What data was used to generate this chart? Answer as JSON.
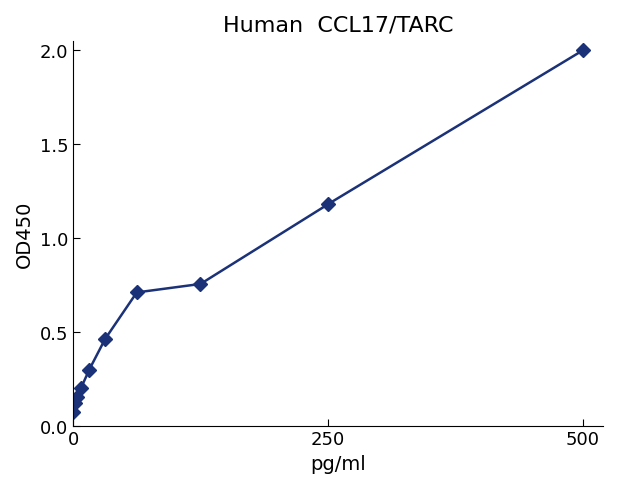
{
  "title": "Human  CCL17/TARC",
  "xlabel": "pg/ml",
  "ylabel": "OD450",
  "color": "#1c3278",
  "x_data": [
    0,
    1.95,
    3.9,
    7.8,
    15.6,
    31.25,
    62.5,
    125,
    250,
    500
  ],
  "y_data": [
    0.07,
    0.12,
    0.155,
    0.2,
    0.295,
    0.46,
    0.71,
    0.755,
    1.18,
    2.0
  ],
  "xlim": [
    0,
    520
  ],
  "ylim": [
    0,
    2.05
  ],
  "xticks": [
    0,
    250,
    500
  ],
  "yticks": [
    0,
    0.5,
    1.0,
    1.5,
    2.0
  ],
  "title_fontsize": 16,
  "label_fontsize": 14,
  "tick_fontsize": 13,
  "title_color": "#000000",
  "marker": "D",
  "marker_size": 7,
  "line_width": 1.8,
  "figsize": [
    6.18,
    4.89
  ],
  "dpi": 100
}
